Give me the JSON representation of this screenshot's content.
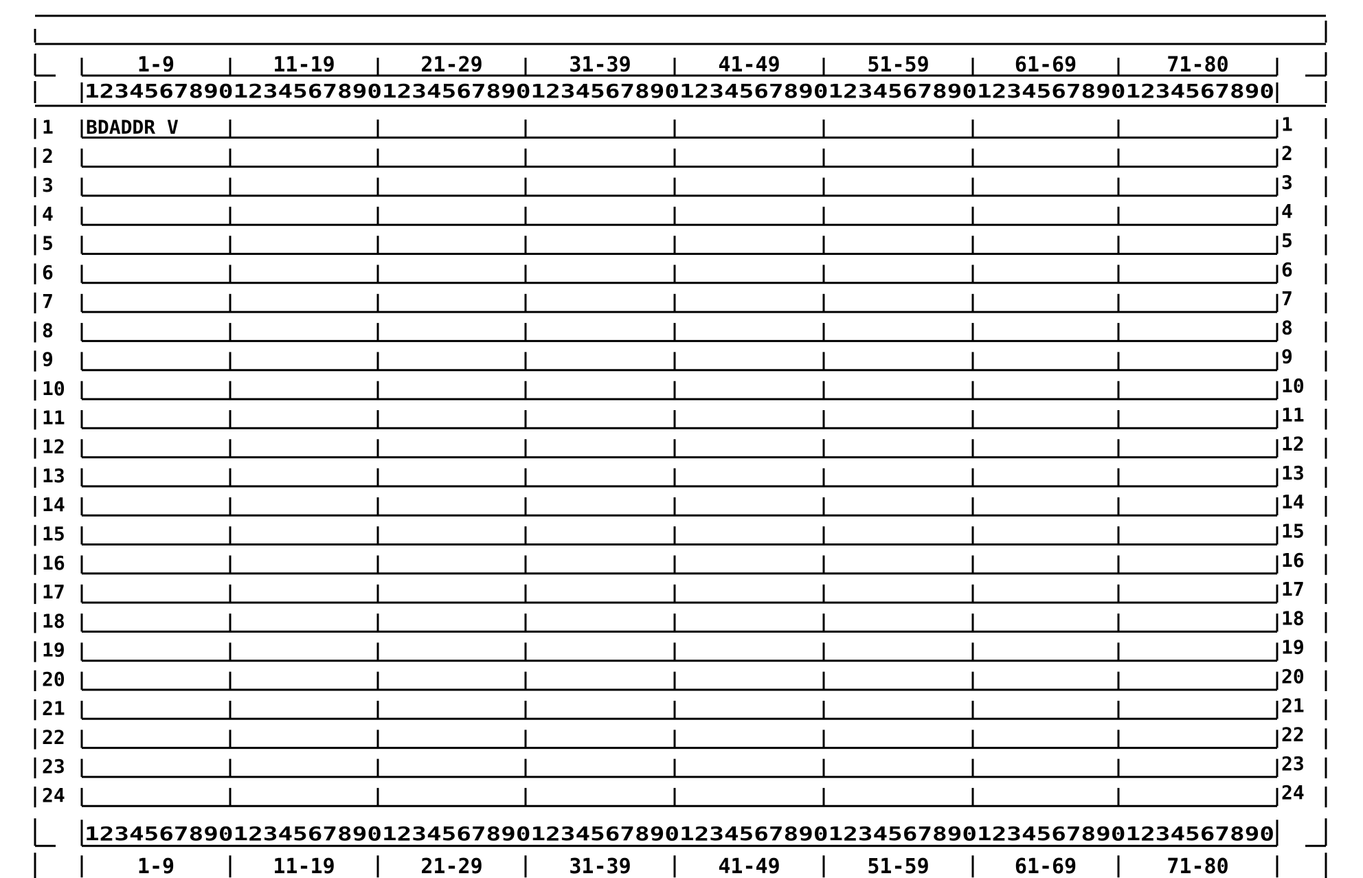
{
  "screen_form": {
    "title_row": "",
    "column_group_labels": [
      "1-9",
      "11-19",
      "21-29",
      "31-39",
      "41-49",
      "51-59",
      "61-69",
      "71-80"
    ],
    "column_ruler": "12345678901234567890123456789012345678901234567890123456789012345678901234567890",
    "row_numbers": [
      "1",
      "2",
      "3",
      "4",
      "5",
      "6",
      "7",
      "8",
      "9",
      "10",
      "11",
      "12",
      "13",
      "14",
      "15",
      "16",
      "17",
      "18",
      "19",
      "20",
      "21",
      "22",
      "23",
      "24"
    ],
    "fields": [
      {
        "row": 1,
        "column_group": 1,
        "text": "BDADDR V"
      }
    ],
    "line_color": "#000000",
    "background_color": "#ffffff"
  }
}
